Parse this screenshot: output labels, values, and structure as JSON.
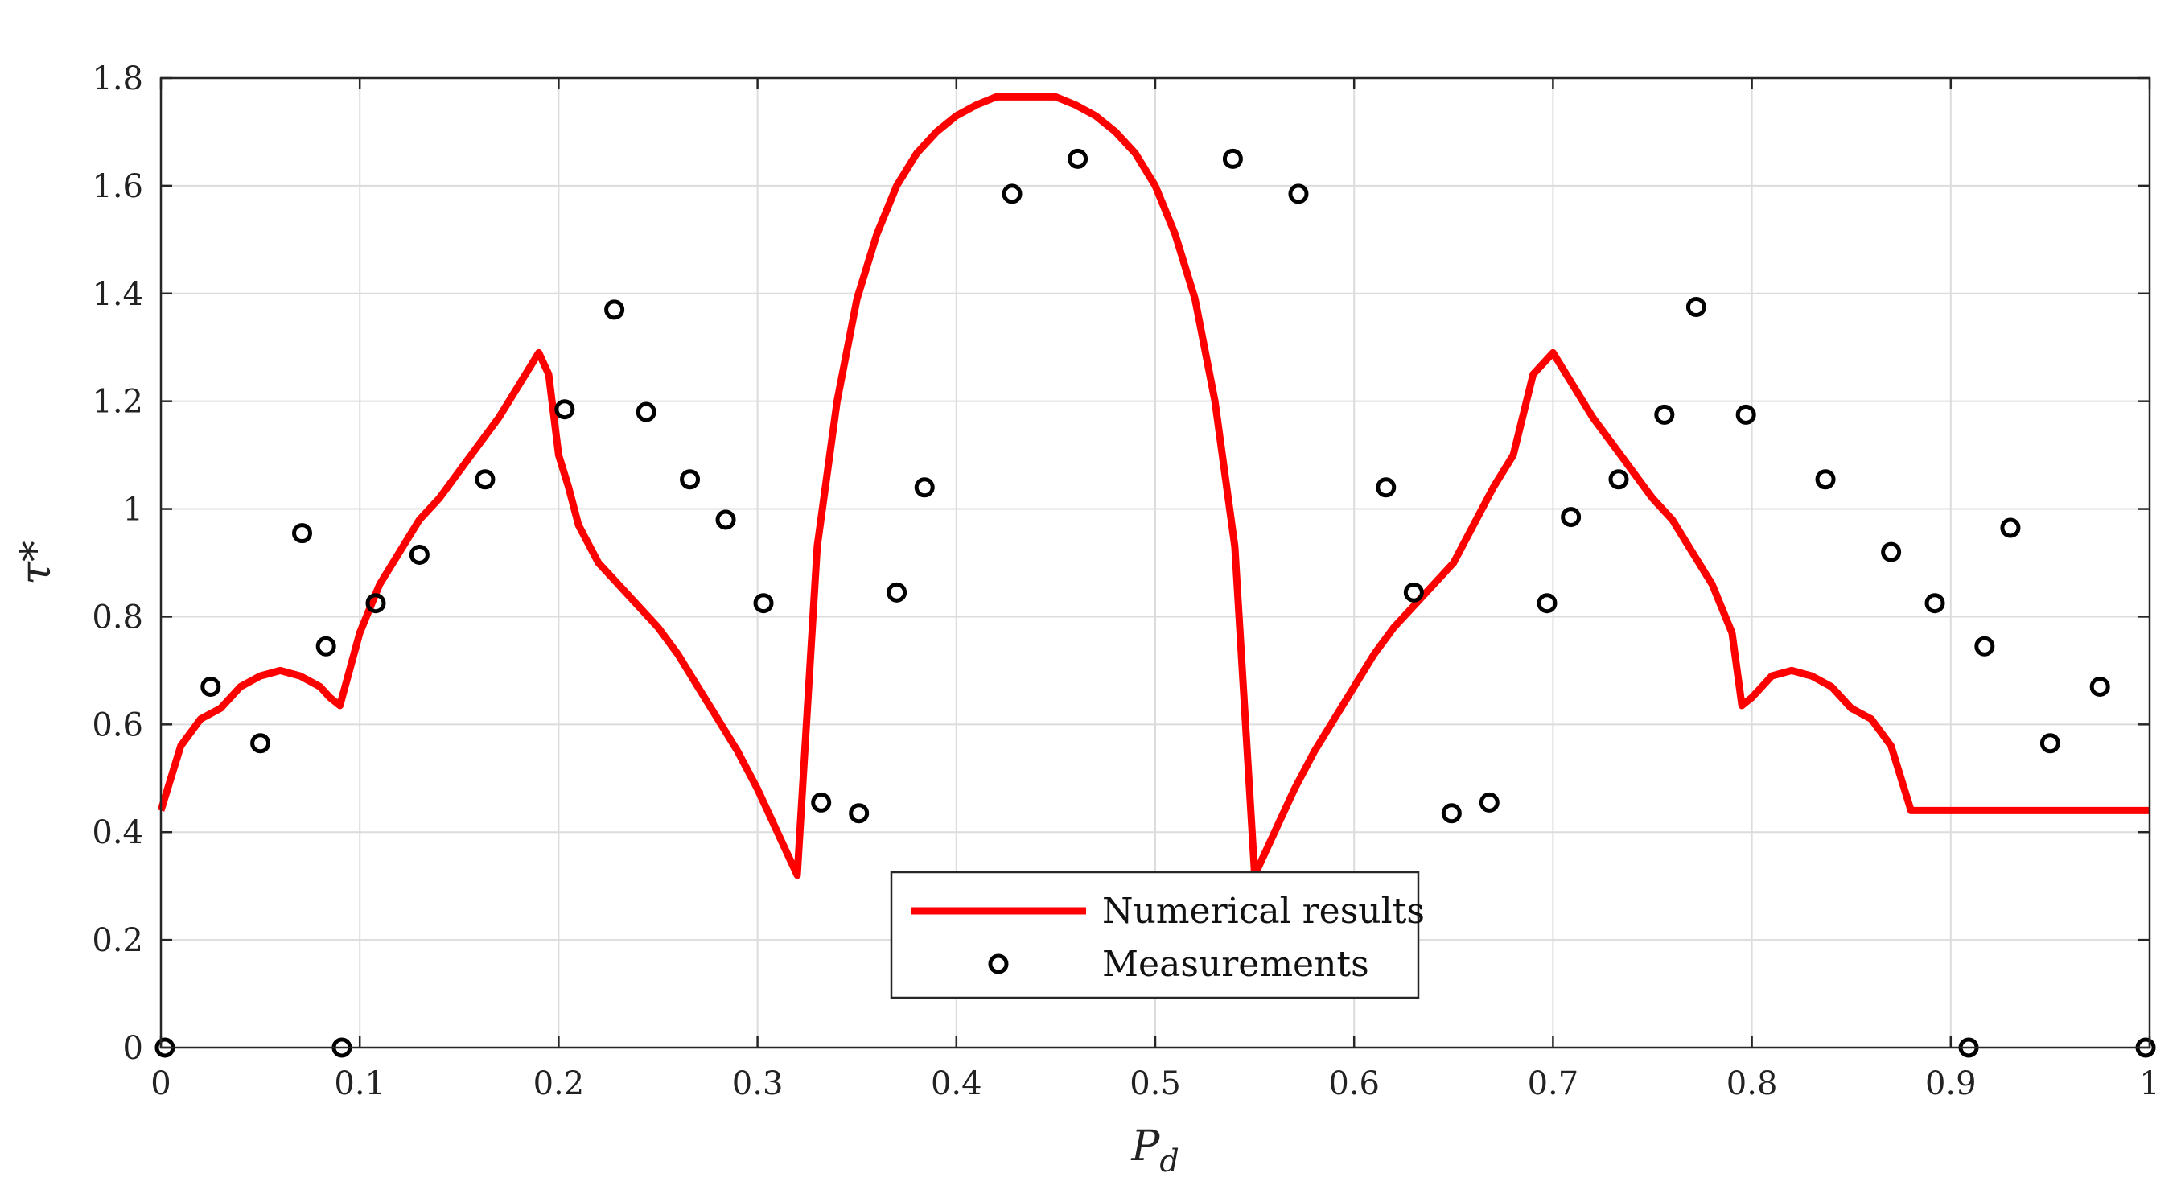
{
  "chart_data": {
    "type": "line",
    "xlabel": "P_d",
    "ylabel": "τ*",
    "xlim": [
      0,
      1
    ],
    "ylim": [
      0,
      1.8
    ],
    "grid": true,
    "legend_position": "bottom-center",
    "x_ticks": [
      "0",
      "0.1",
      "0.2",
      "0.3",
      "0.4",
      "0.5",
      "0.6",
      "0.7",
      "0.8",
      "0.9",
      "1"
    ],
    "y_ticks": [
      "0",
      "0.2",
      "0.4",
      "0.6",
      "0.8",
      "1",
      "1.2",
      "1.4",
      "1.6",
      "1.8"
    ],
    "series": [
      {
        "name": "Numerical results",
        "kind": "line",
        "color": "#ff0000",
        "x": [
          0,
          0.01,
          0.02,
          0.03,
          0.04,
          0.05,
          0.06,
          0.07,
          0.08,
          0.085,
          0.09,
          0.1,
          0.11,
          0.12,
          0.13,
          0.14,
          0.15,
          0.16,
          0.17,
          0.18,
          0.19,
          0.195,
          0.2,
          0.205,
          0.21,
          0.22,
          0.23,
          0.24,
          0.25,
          0.26,
          0.27,
          0.28,
          0.29,
          0.3,
          0.31,
          0.32,
          0.33,
          0.34,
          0.35,
          0.36,
          0.37,
          0.38,
          0.39,
          0.4,
          0.41,
          0.42,
          0.43,
          0.44,
          0.45,
          0.46,
          0.47,
          0.48,
          0.49,
          0.5,
          0.51,
          0.52,
          0.53,
          0.54,
          0.55,
          0.56,
          0.57,
          0.58,
          0.59,
          0.6,
          0.61,
          0.62,
          0.63,
          0.64,
          0.65,
          0.66,
          0.67,
          0.68,
          0.69,
          0.7,
          0.71,
          0.72,
          0.73,
          0.74,
          0.75,
          0.76,
          0.77,
          0.78,
          0.79,
          0.795,
          0.8,
          0.805,
          0.81,
          0.82,
          0.83,
          0.84,
          0.85,
          0.86,
          0.87,
          0.88,
          0.89,
          0.9,
          0.91,
          0.915,
          0.92,
          0.93,
          0.94,
          0.95,
          0.96,
          0.97,
          0.98,
          0.99,
          1.0
        ],
        "y": [
          0.44,
          0.56,
          0.61,
          0.63,
          0.67,
          0.69,
          0.7,
          0.69,
          0.67,
          0.65,
          0.635,
          0.77,
          0.86,
          0.92,
          0.98,
          1.02,
          1.07,
          1.12,
          1.17,
          1.23,
          1.29,
          1.25,
          1.1,
          1.04,
          0.97,
          0.9,
          0.86,
          0.82,
          0.78,
          0.73,
          0.67,
          0.61,
          0.55,
          0.48,
          0.4,
          0.32,
          0.93,
          1.2,
          1.39,
          1.51,
          1.6,
          1.66,
          1.7,
          1.73,
          1.75,
          1.765,
          1.765,
          1.765,
          1.765,
          1.75,
          1.73,
          1.7,
          1.66,
          1.6,
          1.51,
          1.39,
          1.2,
          0.93,
          0.32,
          0.4,
          0.48,
          0.55,
          0.61,
          0.67,
          0.73,
          0.78,
          0.82,
          0.86,
          0.9,
          0.97,
          1.04,
          1.1,
          1.25,
          1.29,
          1.23,
          1.17,
          1.12,
          1.07,
          1.02,
          0.98,
          0.92,
          0.86,
          0.77,
          0.635,
          0.65,
          0.67,
          0.69,
          0.7,
          0.69,
          0.67,
          0.63,
          0.61,
          0.56,
          0.44,
          0.44,
          0.44,
          0.44,
          0.44,
          0.44,
          0.44,
          0.44,
          0.44,
          0.44,
          0.44,
          0.44,
          0.44,
          0.44
        ]
      },
      {
        "name": "Measurements",
        "kind": "scatter",
        "color": "#000000",
        "x": [
          0.002,
          0.025,
          0.05,
          0.071,
          0.083,
          0.091,
          0.108,
          0.13,
          0.163,
          0.203,
          0.228,
          0.244,
          0.266,
          0.284,
          0.303,
          0.332,
          0.351,
          0.37,
          0.384,
          0.428,
          0.461,
          0.539,
          0.572,
          0.616,
          0.63,
          0.649,
          0.668,
          0.697,
          0.709,
          0.733,
          0.756,
          0.772,
          0.797,
          0.837,
          0.87,
          0.892,
          0.909,
          0.917,
          0.93,
          0.95,
          0.975,
          0.998
        ],
        "y": [
          0.0,
          0.67,
          0.565,
          0.955,
          0.745,
          0.0,
          0.825,
          0.915,
          1.055,
          1.185,
          1.37,
          1.18,
          1.055,
          0.98,
          0.825,
          0.455,
          0.435,
          0.845,
          1.04,
          1.585,
          1.65,
          1.65,
          1.585,
          1.04,
          0.845,
          0.435,
          0.455,
          0.825,
          0.985,
          1.055,
          1.175,
          1.375,
          1.175,
          1.055,
          0.92,
          0.825,
          0.0,
          0.745,
          0.965,
          0.565,
          0.67,
          0.0
        ]
      }
    ]
  }
}
